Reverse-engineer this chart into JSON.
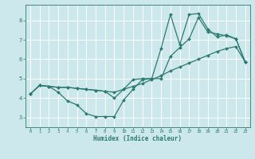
{
  "bg_color": "#cce8ec",
  "line_color": "#2d7a6e",
  "grid_color": "#ffffff",
  "xlabel": "Humidex (Indice chaleur)",
  "xlim": [
    -0.5,
    23.5
  ],
  "ylim": [
    2.5,
    8.8
  ],
  "xticks": [
    0,
    1,
    2,
    3,
    4,
    5,
    6,
    7,
    8,
    9,
    10,
    11,
    12,
    13,
    14,
    15,
    16,
    17,
    18,
    19,
    20,
    21,
    22,
    23
  ],
  "yticks": [
    3,
    4,
    5,
    6,
    7,
    8
  ],
  "line1_x": [
    0,
    1,
    2,
    3,
    4,
    5,
    6,
    7,
    8,
    9,
    10,
    11,
    12,
    13,
    14,
    15,
    16,
    17,
    18,
    19,
    20,
    21,
    22,
    23
  ],
  "line1_y": [
    4.2,
    4.65,
    4.6,
    4.55,
    4.55,
    4.5,
    4.45,
    4.4,
    4.35,
    4.3,
    4.45,
    4.6,
    4.75,
    4.95,
    5.15,
    5.4,
    5.6,
    5.8,
    6.0,
    6.2,
    6.4,
    6.55,
    6.65,
    5.85
  ],
  "line2_x": [
    0,
    1,
    2,
    3,
    4,
    5,
    6,
    7,
    8,
    9,
    10,
    11,
    12,
    13,
    14,
    15,
    16,
    17,
    18,
    19,
    20,
    21,
    22,
    23
  ],
  "line2_y": [
    4.2,
    4.65,
    4.6,
    4.3,
    3.85,
    3.65,
    3.2,
    3.05,
    3.05,
    3.05,
    3.9,
    4.45,
    4.95,
    5.0,
    5.0,
    6.15,
    6.6,
    7.05,
    8.15,
    7.4,
    7.3,
    7.2,
    7.05,
    5.85
  ],
  "line3_x": [
    0,
    1,
    2,
    3,
    4,
    5,
    6,
    7,
    8,
    9,
    10,
    11,
    12,
    13,
    14,
    15,
    16,
    17,
    18,
    19,
    20,
    21,
    22,
    23
  ],
  "line3_y": [
    4.2,
    4.65,
    4.6,
    4.55,
    4.55,
    4.5,
    4.45,
    4.4,
    4.35,
    4.0,
    4.45,
    4.95,
    5.0,
    5.0,
    6.55,
    8.3,
    6.75,
    8.3,
    8.35,
    7.55,
    7.15,
    7.25,
    7.05,
    5.85
  ]
}
